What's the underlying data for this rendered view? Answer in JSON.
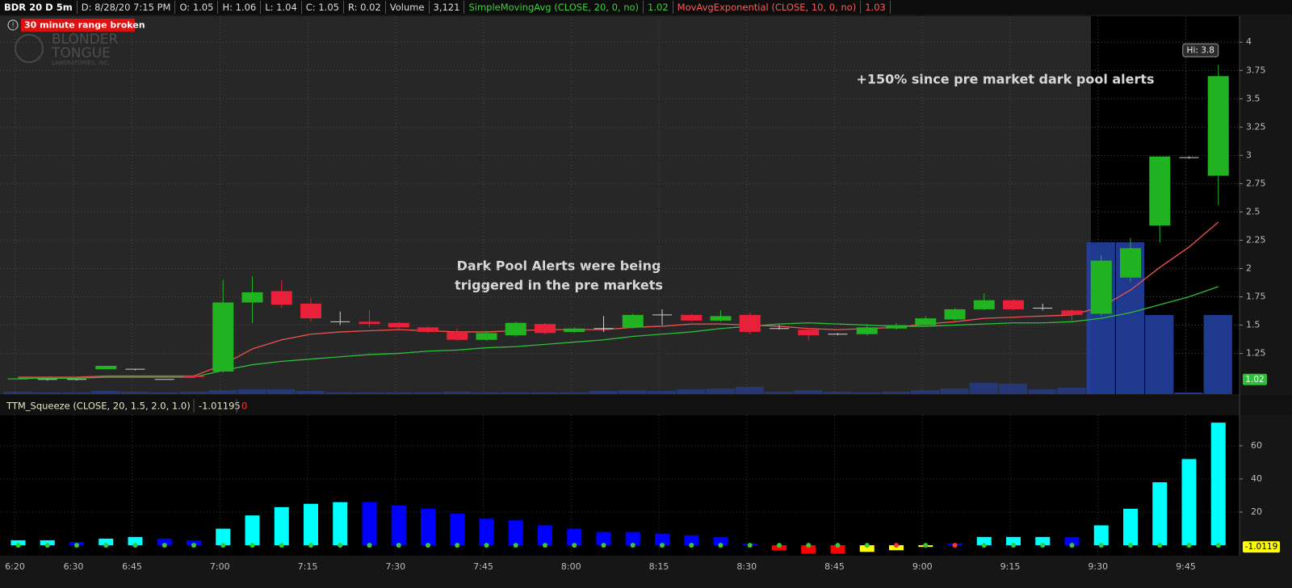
{
  "header": {
    "symbol": "BDR 20 D 5m",
    "date": "D: 8/28/20 7:15 PM",
    "open": "O: 1.05",
    "high": "H: 1.06",
    "low": "L: 1.04",
    "close": "C: 1.05",
    "range": "R: 0.02",
    "volume_label": "Volume",
    "volume": "3,121"
  },
  "alert": "30 minute range broken",
  "logo": [
    "BLONDER",
    "TONGUE",
    "LABORATORIES, INC."
  ],
  "chart_data": [
    {
      "type": "candlestick",
      "open": [
        1.02,
        1.02,
        1.02,
        1.11,
        1.11,
        1.02,
        1.05,
        1.09,
        1.7,
        1.8,
        1.69,
        1.53,
        1.53,
        1.52,
        1.48,
        1.44,
        1.37,
        1.41,
        1.51,
        1.44,
        1.47,
        1.48,
        1.59,
        1.59,
        1.54,
        1.59,
        1.47,
        1.46,
        1.42,
        1.42,
        1.47,
        1.5,
        1.55,
        1.64,
        1.72,
        1.65,
        1.63,
        1.6,
        1.92,
        2.38,
        2.98,
        2.82
      ],
      "high": [
        1.03,
        1.02,
        1.02,
        1.14,
        1.11,
        1.02,
        1.05,
        1.9,
        1.93,
        1.9,
        1.74,
        1.62,
        1.63,
        1.53,
        1.49,
        1.47,
        1.45,
        1.53,
        1.52,
        1.48,
        1.58,
        1.6,
        1.64,
        1.6,
        1.63,
        1.61,
        1.5,
        1.47,
        1.43,
        1.51,
        1.52,
        1.58,
        1.65,
        1.78,
        1.73,
        1.69,
        1.64,
        2.12,
        2.27,
        2.99,
        2.99,
        3.8
      ],
      "low": [
        1.02,
        1.01,
        1.01,
        1.11,
        1.1,
        1.02,
        1.04,
        1.08,
        1.52,
        1.65,
        1.53,
        1.5,
        1.48,
        1.47,
        1.43,
        1.36,
        1.36,
        1.4,
        1.42,
        1.43,
        1.44,
        1.47,
        1.5,
        1.53,
        1.53,
        1.42,
        1.46,
        1.37,
        1.41,
        1.41,
        1.46,
        1.49,
        1.54,
        1.63,
        1.63,
        1.63,
        1.54,
        1.58,
        1.88,
        2.23,
        2.97,
        2.56
      ],
      "close": [
        1.03,
        1.02,
        1.02,
        1.14,
        1.11,
        1.02,
        1.04,
        1.7,
        1.79,
        1.68,
        1.56,
        1.53,
        1.51,
        1.48,
        1.44,
        1.37,
        1.43,
        1.52,
        1.43,
        1.47,
        1.47,
        1.59,
        1.59,
        1.54,
        1.58,
        1.44,
        1.47,
        1.41,
        1.42,
        1.48,
        1.5,
        1.56,
        1.64,
        1.72,
        1.64,
        1.65,
        1.59,
        2.07,
        2.18,
        2.99,
        2.98,
        3.7
      ],
      "up_color": "#22b322",
      "down_color": "#e8203a",
      "doji_color": "#cfcfcf",
      "volume": [
        3000,
        2000,
        2000,
        4000,
        3000,
        2000,
        3000,
        5000,
        6000,
        6000,
        4000,
        2000,
        2000,
        2000,
        2000,
        3000,
        2000,
        2000,
        2000,
        2000,
        4000,
        5000,
        4000,
        6000,
        7000,
        9000,
        3000,
        5000,
        3000,
        2000,
        3000,
        5000,
        7000,
        14000,
        13000,
        6000,
        8000,
        188000,
        188000,
        98000,
        2000,
        98000
      ],
      "volume_ylim": [
        0,
        200000
      ],
      "volume_color": "#2443a8",
      "series": [
        {
          "name": "SimpleMovingAvg (CLOSE, 20, 0, no)",
          "current": 1.02,
          "color": "#2fbf3a",
          "values": [
            1.03,
            1.03,
            1.03,
            1.04,
            1.04,
            1.04,
            1.04,
            1.1,
            1.15,
            1.18,
            1.2,
            1.22,
            1.24,
            1.25,
            1.27,
            1.28,
            1.3,
            1.31,
            1.33,
            1.35,
            1.37,
            1.4,
            1.42,
            1.44,
            1.47,
            1.49,
            1.51,
            1.52,
            1.51,
            1.5,
            1.49,
            1.49,
            1.5,
            1.51,
            1.52,
            1.52,
            1.53,
            1.56,
            1.61,
            1.68,
            1.75,
            1.84
          ]
        },
        {
          "name": "MovAvgExponential (CLOSE, 10, 0, no)",
          "current": 1.03,
          "color": "#f0524f",
          "values": [
            1.04,
            1.04,
            1.04,
            1.05,
            1.05,
            1.05,
            1.05,
            1.15,
            1.29,
            1.37,
            1.42,
            1.44,
            1.45,
            1.46,
            1.45,
            1.44,
            1.44,
            1.45,
            1.46,
            1.46,
            1.46,
            1.48,
            1.49,
            1.51,
            1.51,
            1.5,
            1.49,
            1.47,
            1.46,
            1.47,
            1.48,
            1.51,
            1.53,
            1.56,
            1.57,
            1.58,
            1.59,
            1.66,
            1.81,
            2.01,
            2.19,
            2.41
          ]
        }
      ],
      "ylim": [
        0.89,
        4.23
      ],
      "yticks": [
        1.25,
        1.5,
        1.75,
        2,
        2.25,
        2.5,
        2.75,
        3,
        3.25,
        3.5,
        3.75,
        4
      ],
      "grid": true,
      "hi_label": "Hi: 3.8",
      "last_price": 1.02,
      "annotations": [
        "+150% since pre market dark pool alerts",
        "Dark Pool Alerts were being",
        "triggered in the pre markets"
      ]
    },
    {
      "type": "bar",
      "title": "TTM_Squeeze (CLOSE, 20, 1.5, 2.0, 1.0)",
      "readout": -1.01195,
      "readout_2": 0,
      "categories": [
        "6:20",
        null,
        "6:30",
        null,
        "6:45",
        null,
        null,
        "7:00",
        null,
        null,
        "7:15",
        null,
        null,
        "7:30",
        null,
        null,
        "7:45",
        null,
        null,
        "8:00",
        null,
        null,
        "8:15",
        null,
        null,
        "8:30",
        null,
        null,
        "8:45",
        null,
        null,
        "9:00",
        null,
        null,
        "9:15",
        null,
        null,
        "9:30",
        null,
        null,
        "9:45",
        null
      ],
      "values": [
        3,
        3,
        2,
        4,
        5,
        4,
        3,
        10,
        18,
        23,
        25,
        26,
        26,
        24,
        22,
        19,
        16,
        15,
        12,
        10,
        8,
        8,
        7,
        6,
        5,
        1,
        -3,
        -5,
        -5,
        -4,
        -3,
        -1,
        1,
        5,
        5,
        5,
        5,
        12,
        22,
        38,
        52,
        74
      ],
      "colors": [
        "#00ffff",
        "#00ffff",
        "#0000ff",
        "#00ffff",
        "#00ffff",
        "#0000ff",
        "#0000ff",
        "#00ffff",
        "#00ffff",
        "#00ffff",
        "#00ffff",
        "#00ffff",
        "#0000ff",
        "#0000ff",
        "#0000ff",
        "#0000ff",
        "#0000ff",
        "#0000ff",
        "#0000ff",
        "#0000ff",
        "#0000ff",
        "#0000ff",
        "#0000ff",
        "#0000ff",
        "#0000ff",
        "#0000ff",
        "#ff0000",
        "#ff0000",
        "#ff0000",
        "#ffff00",
        "#ffff00",
        "#ffff00",
        "#0000ff",
        "#00ffff",
        "#00ffff",
        "#00ffff",
        "#0000ff",
        "#00ffff",
        "#00ffff",
        "#00ffff",
        "#00ffff",
        "#00ffff"
      ],
      "dot_colors": [
        "#33cc33",
        "#33cc33",
        "#33cc33",
        "#33cc33",
        "#33cc33",
        "#33cc33",
        "#33cc33",
        "#33cc33",
        "#33cc33",
        "#33cc33",
        "#33cc33",
        "#33cc33",
        "#33cc33",
        "#33cc33",
        "#33cc33",
        "#33cc33",
        "#33cc33",
        "#33cc33",
        "#33cc33",
        "#33cc33",
        "#33cc33",
        "#33cc33",
        "#33cc33",
        "#33cc33",
        "#33cc33",
        "#33cc33",
        "#33cc33",
        "#33cc33",
        "#33cc33",
        "#33cc33",
        "#ff3333",
        "#33cc33",
        "#ff3333",
        "#33cc33",
        "#33cc33",
        "#33cc33",
        "#33cc33",
        "#33cc33",
        "#33cc33",
        "#33cc33",
        "#33cc33",
        "#33cc33"
      ],
      "ylim": [
        -6.3,
        78.5
      ],
      "yticks": [
        20,
        40,
        60
      ],
      "last_value": -1.0119
    }
  ]
}
